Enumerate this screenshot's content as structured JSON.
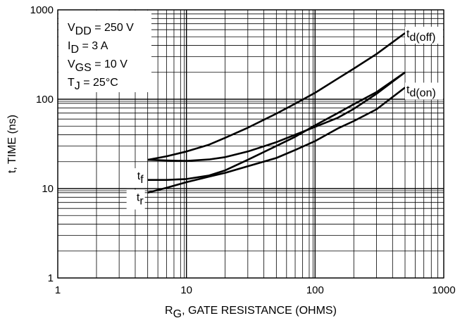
{
  "chart_data": {
    "type": "line",
    "xlabel": "R<sub>G</sub>, GATE RESISTANCE (OHMS)",
    "ylabel": "t, TIME (ns)",
    "xscale": "log",
    "yscale": "log",
    "xlim": [
      1,
      1000
    ],
    "ylim": [
      1,
      1000
    ],
    "grid": true,
    "x_ticks": [
      {
        "v": 1,
        "label": "1"
      },
      {
        "v": 10,
        "label": "10"
      },
      {
        "v": 100,
        "label": "100"
      },
      {
        "v": 1000,
        "label": "1000"
      }
    ],
    "y_ticks": [
      {
        "v": 1,
        "label": "1"
      },
      {
        "v": 10,
        "label": "10"
      },
      {
        "v": 100,
        "label": "100"
      },
      {
        "v": 1000,
        "label": "1000"
      }
    ],
    "conditions": [
      "V<sub>DD</sub> = 250 V",
      "I<sub>D</sub> = 3 A",
      "V<sub>GS</sub> = 10 V",
      "T<sub>J</sub> = 25°C"
    ],
    "series": [
      {
        "name": "t<sub>d(off)</sub>",
        "label_pos": "end",
        "x": [
          5,
          7,
          10,
          15,
          20,
          30,
          50,
          70,
          100,
          150,
          200,
          300,
          500
        ],
        "y": [
          21,
          23,
          26,
          31,
          37,
          48,
          69,
          89,
          118,
          170,
          220,
          320,
          550
        ]
      },
      {
        "name": "t<sub>d(on)</sub>",
        "label_pos": "end",
        "x": [
          5,
          7,
          10,
          15,
          20,
          30,
          50,
          70,
          100,
          150,
          200,
          300,
          500
        ],
        "y": [
          9,
          10.2,
          11.8,
          13.6,
          15,
          17.8,
          22,
          27,
          34,
          47,
          57,
          77,
          135
        ]
      },
      {
        "name": "t<sub>f</sub>",
        "label_pos": "start",
        "x": [
          5,
          7,
          10,
          15,
          20,
          30,
          50,
          70,
          100,
          150,
          200,
          300,
          500
        ],
        "y": [
          21,
          20.6,
          20.4,
          21.2,
          22.5,
          26,
          33,
          40,
          49,
          62,
          78,
          115,
          200
        ]
      },
      {
        "name": "t<sub>r</sub>",
        "label_pos": "start",
        "x": [
          5,
          7,
          10,
          15,
          20,
          30,
          50,
          70,
          100,
          150,
          200,
          300,
          500
        ],
        "y": [
          12.5,
          12.5,
          12.8,
          14,
          16,
          21,
          30,
          38,
          51,
          70,
          88,
          120,
          200
        ]
      }
    ]
  }
}
